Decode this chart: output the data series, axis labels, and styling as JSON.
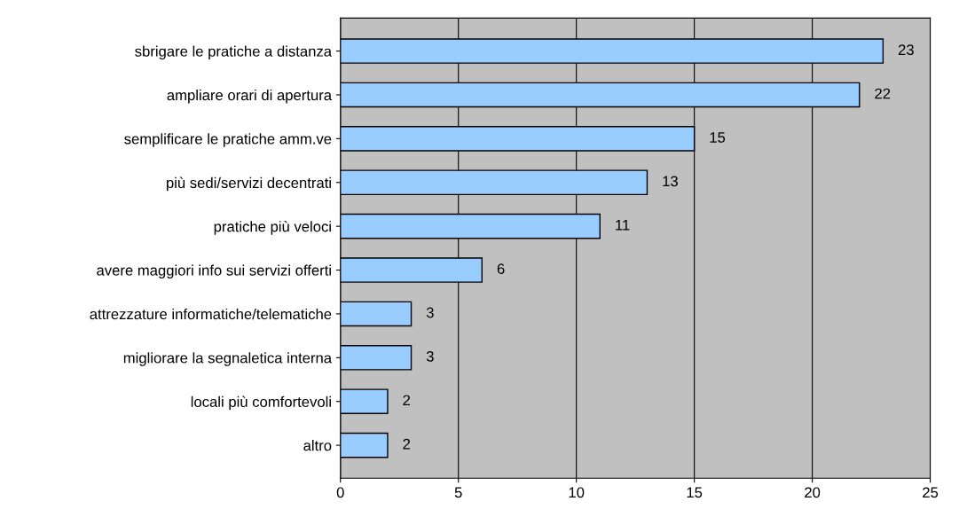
{
  "chart_data": {
    "type": "bar",
    "orientation": "horizontal",
    "categories": [
      "sbrigare le pratiche a distanza",
      "ampliare orari di apertura",
      "semplificare le pratiche amm.ve",
      "più sedi/servizi decentrati",
      "pratiche più veloci",
      "avere maggiori info sui servizi offerti",
      "attrezzature informatiche/telematiche",
      "migliorare la segnaletica interna",
      "locali più comfortevoli",
      "altro"
    ],
    "values": [
      23,
      22,
      15,
      13,
      11,
      6,
      3,
      3,
      2,
      2
    ],
    "color": "#99ccff",
    "xlim": [
      0,
      25
    ],
    "xticks": [
      0,
      5,
      10,
      15,
      20,
      25
    ],
    "grid": "x",
    "data_labels": true
  }
}
